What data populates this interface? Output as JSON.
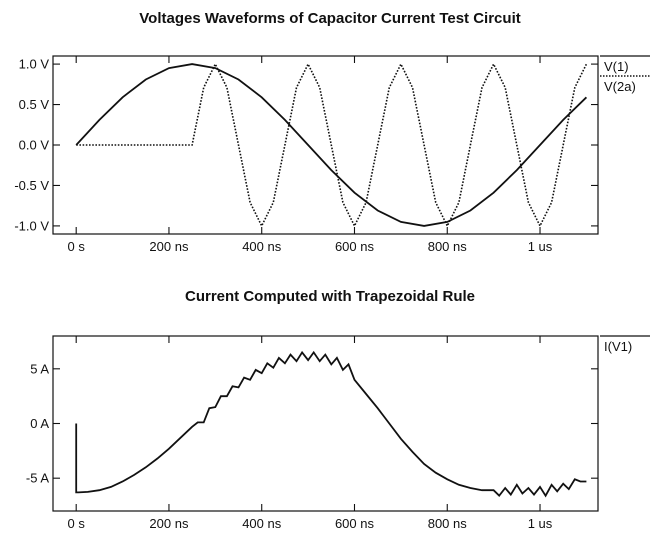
{
  "chart_data": [
    {
      "type": "line",
      "title": "Voltages Waveforms of Capacitor Current Test Circuit",
      "xlabel": "",
      "ylabel": "",
      "x_range_ns": [
        -50,
        1125
      ],
      "ylim": [
        -1.1,
        1.1
      ],
      "x_ticks": [
        {
          "value": 0,
          "label": "0 s"
        },
        {
          "value": 200,
          "label": "200 ns"
        },
        {
          "value": 400,
          "label": "400 ns"
        },
        {
          "value": 600,
          "label": "600 ns"
        },
        {
          "value": 800,
          "label": "800 ns"
        },
        {
          "value": 1000,
          "label": "1 us"
        }
      ],
      "y_ticks": [
        {
          "value": 1.0,
          "label": "1.0 V"
        },
        {
          "value": 0.5,
          "label": "0.5 V"
        },
        {
          "value": 0.0,
          "label": "0.0 V"
        },
        {
          "value": -0.5,
          "label": "-0.5 V"
        },
        {
          "value": -1.0,
          "label": "-1.0 V"
        }
      ],
      "legend_position": "right",
      "series": [
        {
          "name": "V(1)",
          "style": "solid",
          "x": [
            0,
            50,
            100,
            150,
            200,
            250,
            300,
            350,
            400,
            450,
            500,
            550,
            600,
            650,
            700,
            750,
            800,
            850,
            900,
            950,
            1000,
            1050,
            1100
          ],
          "values": [
            0.0,
            0.31,
            0.59,
            0.81,
            0.95,
            1.0,
            0.95,
            0.81,
            0.59,
            0.31,
            0.0,
            -0.31,
            -0.59,
            -0.81,
            -0.95,
            -1.0,
            -0.95,
            -0.81,
            -0.59,
            -0.31,
            0.0,
            0.31,
            0.59
          ]
        },
        {
          "name": "V(2a)",
          "style": "dotted",
          "x": [
            0,
            250,
            275,
            300,
            325,
            350,
            375,
            400,
            425,
            450,
            475,
            500,
            525,
            550,
            575,
            600,
            625,
            650,
            675,
            700,
            725,
            750,
            775,
            800,
            825,
            850,
            875,
            900,
            925,
            950,
            975,
            1000,
            1025,
            1050,
            1075,
            1100
          ],
          "values": [
            0.0,
            0.0,
            0.71,
            1.0,
            0.71,
            0.0,
            -0.71,
            -1.0,
            -0.71,
            0.0,
            0.71,
            1.0,
            0.71,
            0.0,
            -0.71,
            -1.0,
            -0.71,
            0.0,
            0.71,
            1.0,
            0.71,
            0.0,
            -0.71,
            -1.0,
            -0.71,
            0.0,
            0.71,
            1.0,
            0.71,
            0.0,
            -0.71,
            -1.0,
            -0.71,
            0.0,
            0.71,
            1.0
          ]
        }
      ]
    },
    {
      "type": "line",
      "title": "Current Computed with Trapezoidal Rule",
      "xlabel": "",
      "ylabel": "",
      "x_range_ns": [
        -50,
        1125
      ],
      "ylim": [
        -8,
        8
      ],
      "x_ticks": [
        {
          "value": 0,
          "label": "0 s"
        },
        {
          "value": 200,
          "label": "200 ns"
        },
        {
          "value": 400,
          "label": "400 ns"
        },
        {
          "value": 600,
          "label": "600 ns"
        },
        {
          "value": 800,
          "label": "800 ns"
        },
        {
          "value": 1000,
          "label": "1 us"
        }
      ],
      "y_ticks": [
        {
          "value": 5,
          "label": "5 A"
        },
        {
          "value": 0,
          "label": "0 A"
        },
        {
          "value": -5,
          "label": "-5 A"
        }
      ],
      "legend_position": "right",
      "series": [
        {
          "name": "I(V1)",
          "style": "solid",
          "x": [
            0,
            0,
            5,
            25,
            50,
            75,
            100,
            125,
            150,
            175,
            200,
            225,
            250,
            262,
            275,
            287,
            300,
            312,
            325,
            337,
            350,
            362,
            375,
            387,
            400,
            412,
            425,
            437,
            450,
            462,
            475,
            487,
            500,
            512,
            525,
            537,
            550,
            562,
            575,
            587,
            600,
            625,
            650,
            675,
            700,
            725,
            750,
            775,
            800,
            825,
            850,
            875,
            900,
            912,
            925,
            937,
            950,
            962,
            975,
            987,
            1000,
            1012,
            1025,
            1037,
            1050,
            1062,
            1075,
            1087,
            1100
          ],
          "values": [
            0.0,
            -6.3,
            -6.3,
            -6.25,
            -6.1,
            -5.8,
            -5.3,
            -4.7,
            -4.0,
            -3.2,
            -2.3,
            -1.3,
            -0.3,
            0.1,
            0.1,
            1.4,
            1.5,
            2.5,
            2.5,
            3.4,
            3.3,
            4.2,
            4.0,
            4.9,
            4.6,
            5.5,
            5.1,
            6.0,
            5.5,
            6.3,
            5.7,
            6.5,
            5.8,
            6.5,
            5.7,
            6.3,
            5.4,
            6.0,
            4.9,
            5.4,
            4.0,
            2.7,
            1.4,
            0.0,
            -1.4,
            -2.6,
            -3.7,
            -4.5,
            -5.1,
            -5.6,
            -5.9,
            -6.1,
            -6.1,
            -6.6,
            -5.9,
            -6.5,
            -5.6,
            -6.4,
            -5.9,
            -6.5,
            -5.8,
            -6.6,
            -5.6,
            -6.2,
            -5.5,
            -6.0,
            -5.1,
            -5.3,
            -5.3
          ]
        }
      ]
    }
  ]
}
